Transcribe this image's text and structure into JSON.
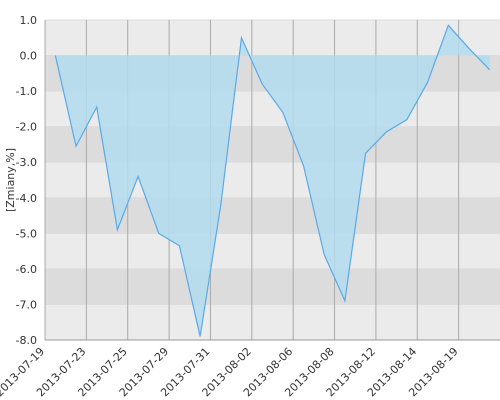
{
  "chart_data": {
    "type": "area",
    "y_label": "[Zmiany,%]",
    "categories": [
      "2013-07-19",
      null,
      "2013-07-23",
      null,
      "2013-07-25",
      null,
      "2013-07-29",
      null,
      "2013-07-31",
      null,
      "2013-08-02",
      null,
      "2013-08-06",
      null,
      "2013-08-08",
      null,
      "2013-08-12",
      null,
      "2013-08-14",
      null,
      "2013-08-19",
      null
    ],
    "values": [
      0.0,
      -2.55,
      -1.45,
      -4.9,
      -3.4,
      -5.0,
      -5.35,
      -7.9,
      -4.2,
      0.5,
      -0.8,
      -1.6,
      -3.1,
      -5.6,
      -6.9,
      -2.75,
      -2.15,
      -1.8,
      -0.75,
      0.85,
      0.2,
      -0.4
    ],
    "color": "#5aa9e6",
    "fill": "#b3dcef",
    "ylim": [
      -8,
      1
    ],
    "yticks": [
      {
        "value": -8,
        "label": "-8.0"
      },
      {
        "value": -7,
        "label": "-7.0"
      },
      {
        "value": -6,
        "label": "-6.0"
      },
      {
        "value": -5,
        "label": "-5.0"
      },
      {
        "value": -4,
        "label": "-4.0"
      },
      {
        "value": -3,
        "label": "-3.0"
      },
      {
        "value": -2,
        "label": "-2.0"
      },
      {
        "value": -1,
        "label": "-1.0"
      },
      {
        "value": 0,
        "label": "0.0"
      },
      {
        "value": 1,
        "label": "1.0"
      }
    ],
    "grid": true
  }
}
